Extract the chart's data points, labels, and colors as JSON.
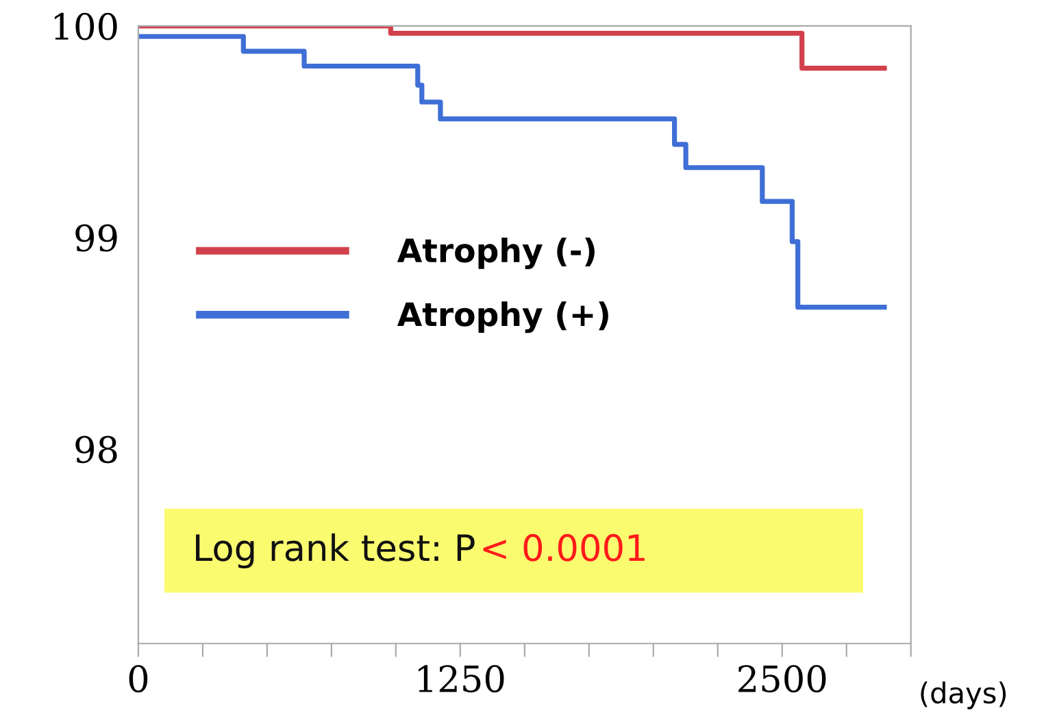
{
  "chart_data": {
    "type": "step",
    "xlabel": "(days)",
    "xlim": [
      0,
      3000
    ],
    "ylim": [
      97.08,
      100
    ],
    "xticks": [
      0,
      {
        "value": 250,
        "label": null
      },
      {
        "value": 500,
        "label": null
      },
      {
        "value": 750,
        "label": null
      },
      {
        "value": 1000,
        "label": null
      },
      1250,
      {
        "value": 1500,
        "label": null
      },
      {
        "value": 1750,
        "label": null
      },
      {
        "value": 2000,
        "label": null
      },
      {
        "value": 2250,
        "label": null
      },
      2500,
      {
        "value": 2750,
        "label": null
      },
      {
        "value": 3000,
        "label": null
      }
    ],
    "yticks": [
      98,
      99,
      100
    ],
    "series": [
      {
        "name": "Atrophy (-)",
        "color": "#d2404c",
        "x": [
          0,
          980,
          2577,
          2897
        ],
        "values": [
          100,
          99.965,
          99.8,
          99.8
        ]
      },
      {
        "name": "Atrophy (+)",
        "color": "#3f6fd6",
        "x": [
          0,
          408,
          644,
          1085,
          1101,
          1173,
          2082,
          2126,
          2423,
          2539,
          2561,
          2897
        ],
        "values": [
          99.95,
          99.88,
          99.81,
          99.72,
          99.64,
          99.56,
          99.44,
          99.33,
          99.17,
          98.98,
          98.67,
          98.67
        ]
      }
    ],
    "annotations": [
      "Log rank test: P",
      "< 0.0001"
    ],
    "legend": "left",
    "grid": false,
    "line_style": "solid",
    "marker": "none"
  }
}
